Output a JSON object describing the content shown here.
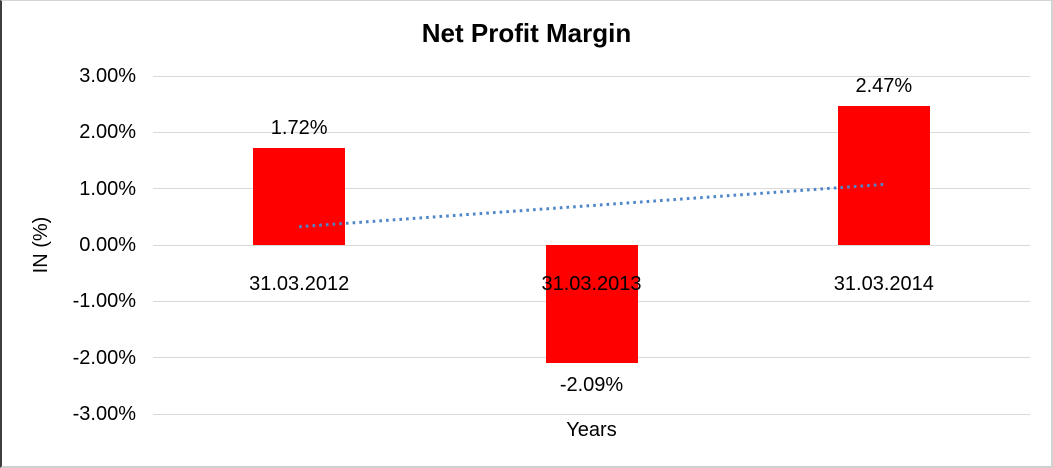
{
  "chart_data": {
    "type": "bar",
    "title": "Net Profit Margin",
    "xlabel": "Years",
    "ylabel": "IN (%)",
    "categories": [
      "31.03.2012",
      "31.03.2013",
      "31.03.2014"
    ],
    "values": [
      1.72,
      -2.09,
      2.47
    ],
    "value_labels": [
      "1.72%",
      "-2.09%",
      "2.47%"
    ],
    "ylim": [
      -3,
      3
    ],
    "ytick_labels": [
      "3.00%",
      "2.00%",
      "1.00%",
      "0.00%",
      "-1.00%",
      "-2.00%",
      "-3.00%"
    ],
    "grid": true,
    "legend": "none",
    "bar_color": "#ff0000",
    "gridline_color": "#d9d9d9",
    "text_color": "#000000",
    "trendline": {
      "type": "linear",
      "style": "dotted",
      "color": "#4e86c8",
      "endpoint_values": [
        0.325,
        1.075
      ]
    }
  }
}
